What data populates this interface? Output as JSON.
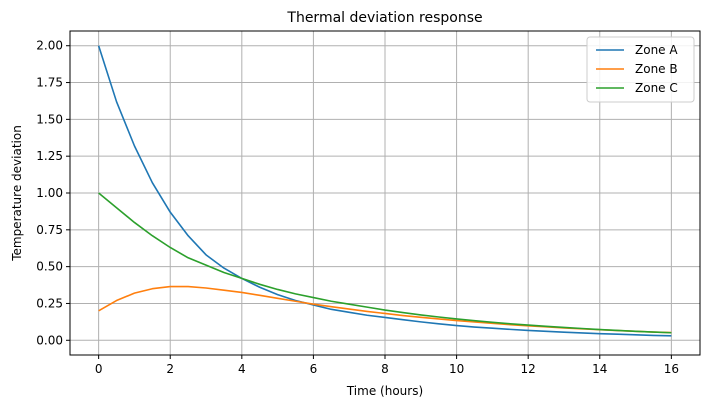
{
  "chart_data": {
    "type": "line",
    "title": "Thermal deviation response",
    "xlabel": "Time (hours)",
    "ylabel": "Temperature deviation",
    "xlim": [
      -0.8,
      16.8
    ],
    "ylim": [
      -0.1,
      2.1
    ],
    "xticks": [
      0,
      2,
      4,
      6,
      8,
      10,
      12,
      14,
      16
    ],
    "yticks": [
      0.0,
      0.25,
      0.5,
      0.75,
      1.0,
      1.25,
      1.5,
      1.75,
      2.0
    ],
    "xtick_labels": [
      "0",
      "2",
      "4",
      "6",
      "8",
      "10",
      "12",
      "14",
      "16"
    ],
    "ytick_labels": [
      "0.00",
      "0.25",
      "0.50",
      "0.75",
      "1.00",
      "1.25",
      "1.50",
      "1.75",
      "2.00"
    ],
    "grid": true,
    "legend_position": "top-right",
    "x": [
      0,
      0.5,
      1,
      1.5,
      2,
      2.5,
      3,
      3.5,
      4,
      4.5,
      5,
      5.5,
      6,
      6.5,
      7,
      7.5,
      8,
      8.5,
      9,
      9.5,
      10,
      10.5,
      11,
      11.5,
      12,
      12.5,
      13,
      13.5,
      14,
      14.5,
      15,
      15.5,
      16
    ],
    "series": [
      {
        "name": "Zone A",
        "color": "#1f77b4",
        "values": [
          2.0,
          1.62,
          1.32,
          1.07,
          0.87,
          0.71,
          0.58,
          0.49,
          0.42,
          0.36,
          0.31,
          0.27,
          0.24,
          0.21,
          0.19,
          0.17,
          0.155,
          0.14,
          0.125,
          0.112,
          0.1,
          0.09,
          0.082,
          0.074,
          0.067,
          0.061,
          0.055,
          0.05,
          0.045,
          0.041,
          0.037,
          0.033,
          0.03
        ]
      },
      {
        "name": "Zone B",
        "color": "#ff7f0e",
        "values": [
          0.2,
          0.27,
          0.32,
          0.35,
          0.365,
          0.365,
          0.355,
          0.34,
          0.325,
          0.305,
          0.285,
          0.265,
          0.245,
          0.228,
          0.212,
          0.196,
          0.182,
          0.168,
          0.156,
          0.145,
          0.134,
          0.124,
          0.115,
          0.106,
          0.098,
          0.091,
          0.084,
          0.078,
          0.072,
          0.066,
          0.061,
          0.056,
          0.052
        ]
      },
      {
        "name": "Zone C",
        "color": "#2ca02c",
        "values": [
          1.0,
          0.9,
          0.8,
          0.71,
          0.63,
          0.56,
          0.51,
          0.46,
          0.42,
          0.38,
          0.345,
          0.315,
          0.29,
          0.265,
          0.245,
          0.225,
          0.205,
          0.188,
          0.172,
          0.158,
          0.145,
          0.133,
          0.122,
          0.112,
          0.103,
          0.095,
          0.087,
          0.08,
          0.073,
          0.067,
          0.061,
          0.056,
          0.051
        ]
      }
    ]
  }
}
